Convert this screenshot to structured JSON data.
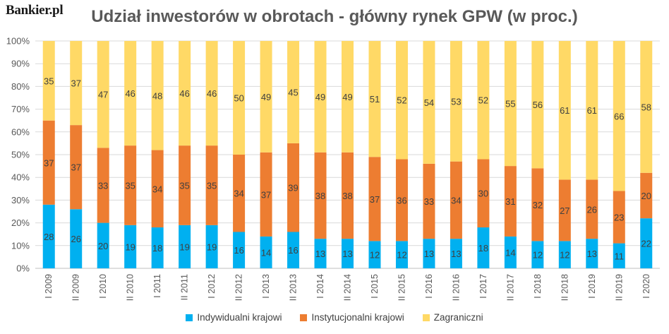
{
  "logo": "Bankier.pl",
  "chart_data": {
    "type": "bar",
    "stacked": true,
    "title": "Udział inwestorów w obrotach - główny rynek GPW (w proc.)",
    "xlabel": "",
    "ylabel": "",
    "ylim": [
      0,
      100
    ],
    "yticks": [
      "0%",
      "10%",
      "20%",
      "30%",
      "40%",
      "50%",
      "60%",
      "70%",
      "80%",
      "90%",
      "100%"
    ],
    "grid": true,
    "legend_position": "bottom",
    "categories": [
      "I 2009",
      "II 2009",
      "I 2010",
      "II 2010",
      "I 2011",
      "II 2011",
      "I 2012",
      "II 2012",
      "I 2013",
      "II 2013",
      "I 2014",
      "II 2014",
      "I 2015",
      "II 2015",
      "I 2016",
      "II 2016",
      "I 2017",
      "II 2017",
      "I 2018",
      "II 2018",
      "I 2019",
      "II 2019",
      "I 2020"
    ],
    "series": [
      {
        "name": "Indywidualni krajowi",
        "color": "#00b0f0",
        "values": [
          28,
          26,
          20,
          19,
          18,
          19,
          19,
          16,
          14,
          16,
          13,
          13,
          12,
          12,
          13,
          13,
          18,
          14,
          12,
          12,
          13,
          11,
          22
        ]
      },
      {
        "name": "Instytucjonalni krajowi",
        "color": "#ed7d31",
        "values": [
          37,
          37,
          33,
          35,
          34,
          35,
          35,
          34,
          37,
          39,
          38,
          38,
          37,
          36,
          33,
          34,
          30,
          31,
          32,
          27,
          26,
          23,
          20
        ]
      },
      {
        "name": "Zagraniczni",
        "color": "#ffd966",
        "values": [
          35,
          37,
          47,
          46,
          48,
          46,
          46,
          50,
          49,
          45,
          49,
          49,
          51,
          52,
          54,
          53,
          52,
          55,
          56,
          61,
          61,
          66,
          58
        ]
      }
    ]
  }
}
